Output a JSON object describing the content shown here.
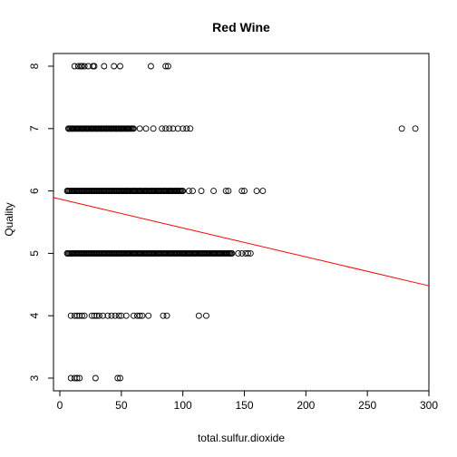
{
  "chart_data": {
    "type": "scatter",
    "title": "Red Wine",
    "xlabel": "total.sulfur.dioxide",
    "ylabel": "Quality",
    "xlim": [
      0,
      300
    ],
    "ylim": [
      3,
      8
    ],
    "x_ticks": [
      0,
      50,
      100,
      150,
      200,
      250,
      300
    ],
    "y_ticks": [
      3,
      4,
      5,
      6,
      7,
      8
    ],
    "grid": false,
    "legend": "none",
    "series": [
      {
        "points": [
          {
            "q": 8,
            "x": [
              12,
              15,
              17,
              18,
              20,
              23,
              27,
              28,
              36,
              44,
              49,
              74,
              86,
              88
            ]
          },
          {
            "q": 7,
            "x": [
              7,
              10,
              14,
              18,
              22,
              26,
              30,
              34,
              38,
              42,
              46,
              50,
              55,
              60,
              65,
              70,
              76,
              83,
              86,
              89,
              92,
              96,
              100,
              103,
              106,
              278,
              289
            ]
          },
          {
            "q": 6,
            "x": [
              6,
              10,
              14,
              18,
              22,
              26,
              30,
              34,
              38,
              42,
              46,
              50,
              55,
              60,
              65,
              70,
              75,
              80,
              85,
              90,
              95,
              100,
              105,
              108,
              115,
              125,
              135,
              137,
              148,
              150,
              160,
              165
            ]
          },
          {
            "q": 5,
            "x": [
              6,
              10,
              14,
              18,
              22,
              26,
              30,
              34,
              38,
              42,
              46,
              50,
              55,
              60,
              65,
              70,
              75,
              80,
              85,
              90,
              95,
              100,
              105,
              110,
              115,
              120,
              125,
              130,
              135,
              140,
              145,
              148,
              151,
              153,
              155
            ]
          },
          {
            "q": 4,
            "x": [
              9,
              12,
              14,
              16,
              18,
              20,
              26,
              28,
              30,
              32,
              35,
              39,
              42,
              45,
              48,
              50,
              54,
              60,
              63,
              65,
              67,
              72,
              84,
              87,
              113,
              119
            ]
          },
          {
            "q": 3,
            "x": [
              9,
              12,
              14,
              16,
              29,
              47,
              49
            ]
          }
        ]
      }
    ],
    "fit_line": {
      "x": [
        0,
        300
      ],
      "y": [
        5.87,
        4.48
      ]
    }
  }
}
